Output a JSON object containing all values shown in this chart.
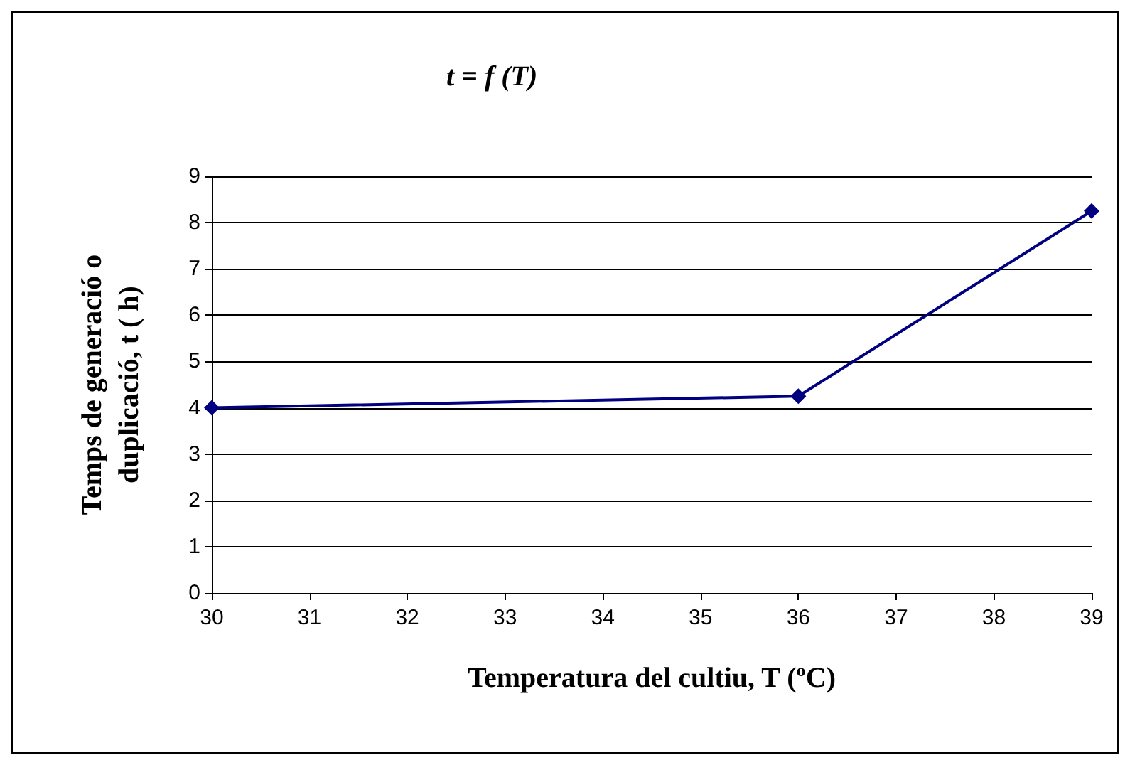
{
  "chart_data": {
    "type": "line",
    "title": "t = f (T)",
    "xlabel": "Temperatura del cultiu, T (ºC)",
    "ylabel": "Temps de generació o duplicació, t ( h)",
    "x": [
      30,
      36,
      39
    ],
    "series": [
      {
        "color": "#000080",
        "values": [
          4,
          4.25,
          8.25
        ]
      }
    ],
    "xlim": [
      30,
      39
    ],
    "xticks": [
      30,
      31,
      32,
      33,
      34,
      35,
      36,
      37,
      38,
      39
    ],
    "ylim": [
      0,
      9
    ],
    "yticks": [
      0,
      1,
      2,
      3,
      4,
      5,
      6,
      7,
      8,
      9
    ],
    "grid": "y",
    "marker": "diamond",
    "line_style": "solid"
  }
}
